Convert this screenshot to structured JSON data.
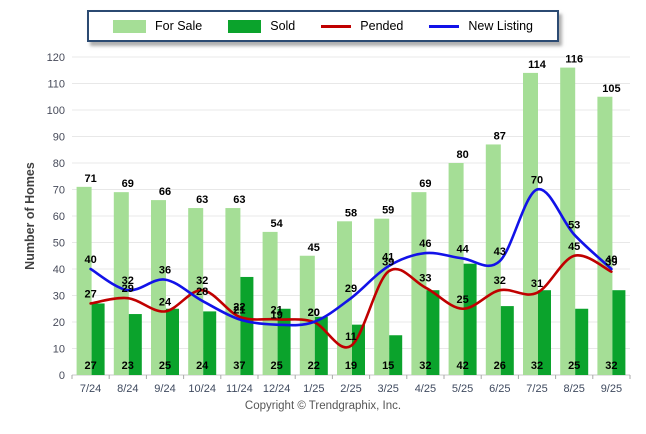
{
  "ylabel": "Number of Homes",
  "footer": "Copyright © Trendgraphix, Inc.",
  "colors": {
    "for_sale": "#A5DE96",
    "sold": "#0BA32C",
    "pended": "#C00000",
    "new_listing": "#1212E8",
    "legend_border": "#2B4A72",
    "gridline": "#E8E8E8",
    "baseline": "#C9C9C9",
    "tick": "#A9A9A9"
  },
  "legend": {
    "items": [
      {
        "label": "For Sale",
        "type": "swatch",
        "color": "#A5DE96"
      },
      {
        "label": "Sold",
        "type": "swatch",
        "color": "#0BA32C"
      },
      {
        "label": "Pended",
        "type": "line",
        "color": "#C00000"
      },
      {
        "label": "New Listing",
        "type": "line",
        "color": "#1212E8"
      }
    ]
  },
  "chart_data": {
    "type": "bar",
    "subtype": "grouped bars with overlaid smooth lines",
    "categories": [
      "7/24",
      "8/24",
      "9/24",
      "10/24",
      "11/24",
      "12/24",
      "1/25",
      "2/25",
      "3/25",
      "4/25",
      "5/25",
      "6/25",
      "7/25",
      "8/25",
      "9/25"
    ],
    "series": [
      {
        "name": "For Sale",
        "type": "bar",
        "color": "#A5DE96",
        "values": [
          71,
          69,
          66,
          63,
          63,
          54,
          45,
          58,
          59,
          69,
          80,
          87,
          114,
          116,
          105
        ]
      },
      {
        "name": "Sold",
        "type": "bar",
        "color": "#0BA32C",
        "values": [
          27,
          23,
          25,
          24,
          37,
          25,
          22,
          19,
          15,
          32,
          42,
          26,
          32,
          25,
          32
        ]
      },
      {
        "name": "Pended",
        "type": "line",
        "color": "#C00000",
        "values": [
          27,
          29,
          24,
          32,
          22,
          21,
          20,
          11,
          39,
          33,
          25,
          32,
          31,
          45,
          39
        ]
      },
      {
        "name": "New Listing",
        "type": "line",
        "color": "#1212E8",
        "values": [
          40,
          32,
          36,
          28,
          21,
          19,
          20,
          29,
          41,
          46,
          44,
          43,
          70,
          53,
          40
        ]
      }
    ],
    "title": "",
    "xlabel": "",
    "ylabel": "Number of Homes",
    "ylim": [
      0,
      120
    ],
    "yticks": [
      0,
      10,
      20,
      30,
      40,
      50,
      60,
      70,
      80,
      90,
      100,
      110,
      120
    ],
    "grid": true,
    "legend_position": "top-center",
    "data_labels": true
  }
}
